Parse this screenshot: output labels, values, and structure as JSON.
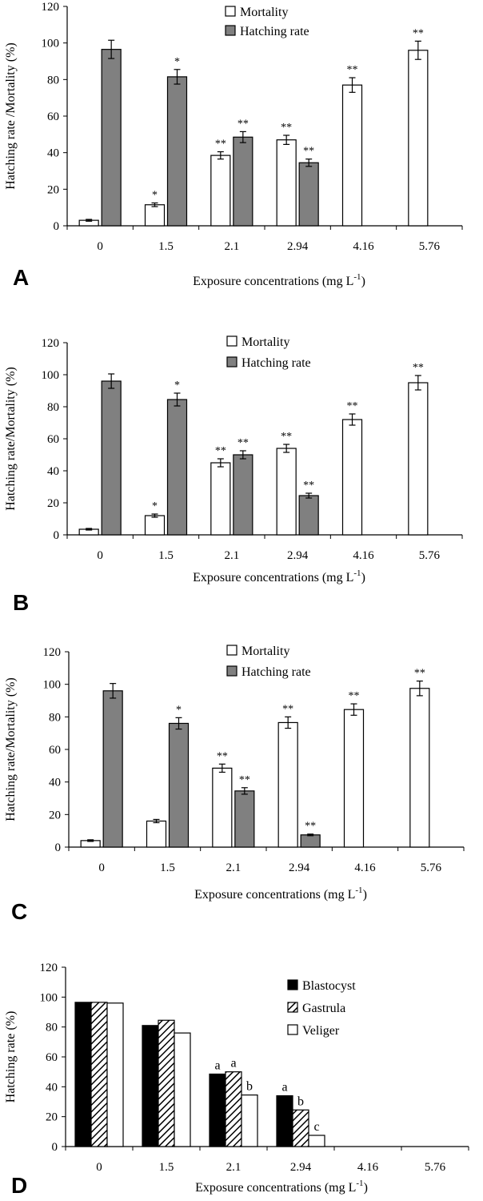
{
  "chart_data": [
    {
      "panel": "A",
      "type": "bar",
      "categories": [
        "0",
        "1.5",
        "2.1",
        "2.94",
        "4.16",
        "5.76"
      ],
      "xlabel": "Exposure concentrations (mg L",
      "xlabel_sup": "-1",
      "xlabel_end": ")",
      "ylabel": "Hatching rate /Mortality (%)",
      "ylim": [
        0,
        120
      ],
      "yticks": [
        0,
        20,
        40,
        60,
        80,
        100,
        120
      ],
      "legend_position": "top-center",
      "series": [
        {
          "name": "Mortality",
          "color": "#ffffff",
          "values": [
            3,
            11.5,
            38.5,
            47,
            77,
            96
          ],
          "errors": [
            0.5,
            1,
            2,
            2.5,
            4,
            5
          ],
          "sig": [
            "",
            "*",
            "**",
            "**",
            "**",
            "**"
          ]
        },
        {
          "name": "Hatching rate",
          "color": "#808080",
          "values": [
            96.5,
            81.5,
            48.5,
            34.5,
            null,
            null
          ],
          "errors": [
            5,
            4,
            3,
            2,
            null,
            null
          ],
          "sig": [
            "",
            "*",
            "**",
            "**",
            "",
            ""
          ]
        }
      ]
    },
    {
      "panel": "B",
      "type": "bar",
      "categories": [
        "0",
        "1.5",
        "2.1",
        "2.94",
        "4.16",
        "5.76"
      ],
      "xlabel": "Exposure concentrations (mg L",
      "xlabel_sup": "-1",
      "xlabel_end": ")",
      "ylabel": "Hatching rate/Mortality (%)",
      "ylim": [
        0,
        120
      ],
      "yticks": [
        0,
        20,
        40,
        60,
        80,
        100,
        120
      ],
      "legend_position": "top-center",
      "series": [
        {
          "name": "Mortality",
          "color": "#ffffff",
          "values": [
            3.5,
            12,
            45,
            54,
            72,
            95
          ],
          "errors": [
            0.5,
            1,
            2.5,
            2.5,
            3.5,
            4.5
          ],
          "sig": [
            "",
            "*",
            "**",
            "**",
            "**",
            "**"
          ]
        },
        {
          "name": "Hatching rate",
          "color": "#808080",
          "values": [
            96,
            84.5,
            50,
            24.5,
            null,
            null
          ],
          "errors": [
            4.5,
            4,
            2.5,
            1.5,
            null,
            null
          ],
          "sig": [
            "",
            "*",
            "**",
            "**",
            "",
            ""
          ]
        }
      ]
    },
    {
      "panel": "C",
      "type": "bar",
      "categories": [
        "0",
        "1.5",
        "2.1",
        "2.94",
        "4.16",
        "5.76"
      ],
      "xlabel": "Exposure concentrations (mg L",
      "xlabel_sup": "-1",
      "xlabel_end": ")",
      "ylabel": "Hatching rate/Mortality (%)",
      "ylim": [
        0,
        120
      ],
      "yticks": [
        0,
        20,
        40,
        60,
        80,
        100,
        120
      ],
      "legend_position": "top-center",
      "series": [
        {
          "name": "Mortality",
          "color": "#ffffff",
          "values": [
            4,
            16,
            48.5,
            76.5,
            84.5,
            97.5
          ],
          "errors": [
            0.5,
            1,
            2.5,
            3.5,
            3.5,
            4.5
          ],
          "sig": [
            "",
            "",
            "**",
            "**",
            "**",
            "**"
          ]
        },
        {
          "name": "Hatching rate",
          "color": "#808080",
          "values": [
            96,
            76,
            34.5,
            7.5,
            null,
            null
          ],
          "errors": [
            4.5,
            3.5,
            2,
            0.5,
            null,
            null
          ],
          "sig": [
            "",
            "*",
            "**",
            "**",
            "",
            ""
          ]
        }
      ]
    },
    {
      "panel": "D",
      "type": "bar",
      "categories": [
        "0",
        "1.5",
        "2.1",
        "2.94",
        "4.16",
        "5.76"
      ],
      "xlabel": "Exposure concentrations (mg L",
      "xlabel_sup": "-1",
      "xlabel_end": ")",
      "ylabel": "Hatching rate (%)",
      "ylim": [
        0,
        120
      ],
      "yticks": [
        0,
        20,
        40,
        60,
        80,
        100,
        120
      ],
      "legend_position": "top-right",
      "series": [
        {
          "name": "Blastocyst",
          "color": "#000000",
          "values": [
            96.5,
            81,
            48.5,
            34,
            null,
            null
          ],
          "letters": [
            "",
            "",
            "a",
            "a",
            "",
            ""
          ]
        },
        {
          "name": "Gastrula",
          "color": "hatched",
          "values": [
            96.5,
            84.5,
            50,
            24.5,
            null,
            null
          ],
          "letters": [
            "",
            "",
            "a",
            "b",
            "",
            ""
          ]
        },
        {
          "name": "Veliger",
          "color": "#ffffff",
          "values": [
            96,
            76,
            34.5,
            7.5,
            null,
            null
          ],
          "letters": [
            "",
            "",
            "b",
            "c",
            "",
            ""
          ]
        }
      ]
    }
  ]
}
